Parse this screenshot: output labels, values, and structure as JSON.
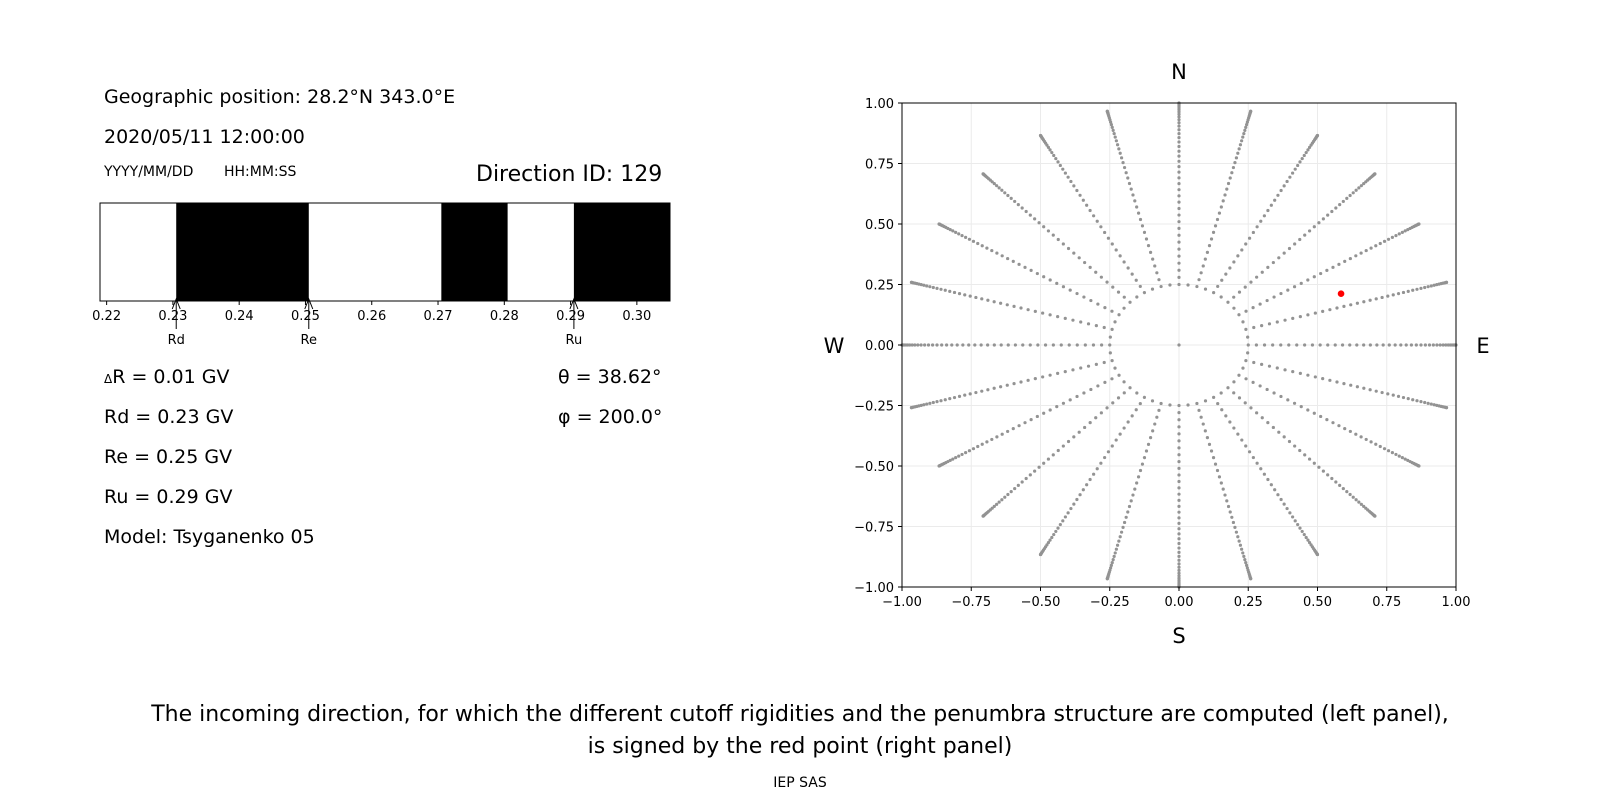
{
  "info": {
    "geo_position": "Geographic position: 28.2°N 343.0°E",
    "datetime": "2020/05/11 12:00:00",
    "date_format": "YYYY/MM/DD",
    "time_format": "HH:MM:SS",
    "direction_id": "Direction ID: 129",
    "delta_r": "R = 0.01 GV",
    "delta_symbol": "Δ",
    "rd": "Rd = 0.23 GV",
    "re": "Re = 0.25 GV",
    "ru": "Ru = 0.29 GV",
    "model": "Model: Tsyganenko 05",
    "theta": "θ = 38.62°",
    "phi": "φ = 200.0°"
  },
  "caption": {
    "line1": "The incoming direction, for which the different cutoff rigidities and the penumbra structure are computed (left panel),",
    "line2": "is signed by the red point (right panel)",
    "credit": "IEP SAS"
  },
  "chart_data": [
    {
      "type": "bar",
      "name": "penumbra",
      "xlim": [
        0.219,
        0.305
      ],
      "xticks": [
        "0.22",
        "0.23",
        "0.24",
        "0.25",
        "0.26",
        "0.27",
        "0.28",
        "0.29",
        "0.30"
      ],
      "xtick_values": [
        0.22,
        0.23,
        0.24,
        0.25,
        0.26,
        0.27,
        0.28,
        0.29,
        0.3
      ],
      "forbidden_bands": [
        [
          0.2305,
          0.2505
        ],
        [
          0.2705,
          0.2805
        ],
        [
          0.2905,
          0.305
        ]
      ],
      "band_color": "#000000",
      "markers": [
        {
          "label": "Rd",
          "value": 0.2305
        },
        {
          "label": "Re",
          "value": 0.2505
        },
        {
          "label": "Ru",
          "value": 0.2905
        }
      ]
    },
    {
      "type": "scatter",
      "name": "directions",
      "xlim": [
        -1.0,
        1.0
      ],
      "ylim": [
        -1.0,
        1.0
      ],
      "xticks": [
        "−1.00",
        "−0.75",
        "−0.50",
        "−0.25",
        "0.00",
        "0.25",
        "0.50",
        "0.75",
        "1.00"
      ],
      "yticks": [
        "−1.00",
        "−0.75",
        "−0.50",
        "−0.25",
        "0.00",
        "0.25",
        "0.50",
        "0.75",
        "1.00"
      ],
      "tick_values": [
        -1.0,
        -0.75,
        -0.5,
        -0.25,
        0.0,
        0.25,
        0.5,
        0.75,
        1.0
      ],
      "grid": true,
      "compass": {
        "north": "N",
        "south": "S",
        "west": "W",
        "east": "E"
      },
      "grid_point_color": "#939393",
      "selected_color": "#ff0000",
      "center_point": [
        0.0,
        0.0
      ],
      "zenith_rings": [
        0.25,
        0.42,
        0.58,
        0.71,
        0.82,
        0.91,
        0.97,
        1.0
      ],
      "inner_ring_directions": 48,
      "azimuth_step_deg": 15,
      "radial_samples": 40,
      "selected_point": [
        0.585,
        0.212
      ]
    }
  ]
}
